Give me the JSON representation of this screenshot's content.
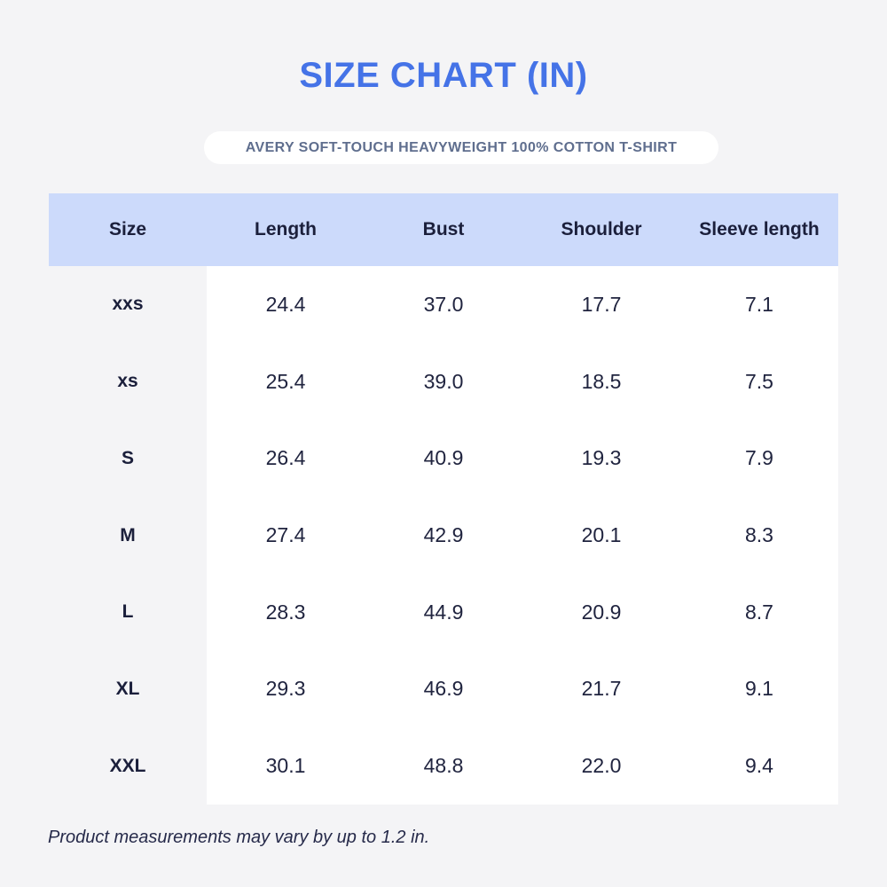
{
  "page": {
    "title": "SIZE CHART (IN)",
    "product_name": "AVERY SOFT-TOUCH HEAVYWEIGHT 100% COTTON T-SHIRT",
    "footnote": "Product measurements may vary by up to 1.2 in.",
    "colors": {
      "background": "#F4F4F6",
      "title": "#4573E7",
      "product_text": "#5F6E8E",
      "pill_bg": "#FFFFFF",
      "header_bg": "#CCDAFB",
      "body_bg": "#FFFFFF",
      "text_dark": "#1B1F3B"
    }
  },
  "chart_data": {
    "type": "table",
    "title": "SIZE CHART (IN)",
    "columns": [
      "Size",
      "Length",
      "Bust",
      "Shoulder",
      "Sleeve length"
    ],
    "rows": [
      {
        "size": "xxs",
        "length": "24.4",
        "bust": "37.0",
        "shoulder": "17.7",
        "sleeve_length": "7.1"
      },
      {
        "size": "xs",
        "length": "25.4",
        "bust": "39.0",
        "shoulder": "18.5",
        "sleeve_length": "7.5"
      },
      {
        "size": "S",
        "length": "26.4",
        "bust": "40.9",
        "shoulder": "19.3",
        "sleeve_length": "7.9"
      },
      {
        "size": "M",
        "length": "27.4",
        "bust": "42.9",
        "shoulder": "20.1",
        "sleeve_length": "8.3"
      },
      {
        "size": "L",
        "length": "28.3",
        "bust": "44.9",
        "shoulder": "20.9",
        "sleeve_length": "8.7"
      },
      {
        "size": "XL",
        "length": "29.3",
        "bust": "46.9",
        "shoulder": "21.7",
        "sleeve_length": "9.1"
      },
      {
        "size": "XXL",
        "length": "30.1",
        "bust": "48.8",
        "shoulder": "22.0",
        "sleeve_length": "9.4"
      }
    ]
  }
}
